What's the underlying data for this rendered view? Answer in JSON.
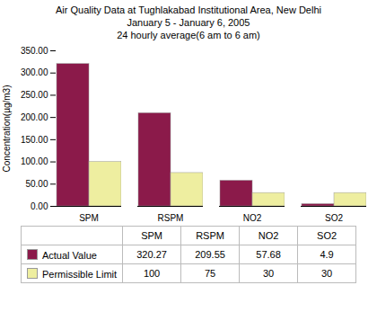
{
  "chart_data": {
    "type": "bar",
    "title": "Air Quality Data at Tughlakabad Institutional Area, New Delhi\nJanuary 5  - January 6, 2005\n24 hourly average(6 am to 6 am)",
    "ylabel": "Concentration(µg/m3)",
    "categories": [
      "SPM",
      "RSPM",
      "NO2",
      "SO2"
    ],
    "series": [
      {
        "name": "Actual Value",
        "color": "#8B1A4A",
        "values": [
          320.27,
          209.55,
          57.68,
          4.9
        ]
      },
      {
        "name": "Permissible Limit",
        "color": "#EEEEA0",
        "values": [
          100,
          75,
          30,
          30
        ]
      }
    ],
    "ylim": [
      0,
      350
    ],
    "yticks": [
      {
        "value": 0,
        "label": "0.00"
      },
      {
        "value": 50,
        "label": "50.00"
      },
      {
        "value": 100,
        "label": "100.00"
      },
      {
        "value": 150,
        "label": "150.00"
      },
      {
        "value": 200,
        "label": "200.00"
      },
      {
        "value": 250,
        "label": "250.00"
      },
      {
        "value": 300,
        "label": "300.00"
      },
      {
        "value": 350,
        "label": "350.00"
      }
    ],
    "grid": false,
    "legend": "bottom",
    "data_labels": true
  }
}
